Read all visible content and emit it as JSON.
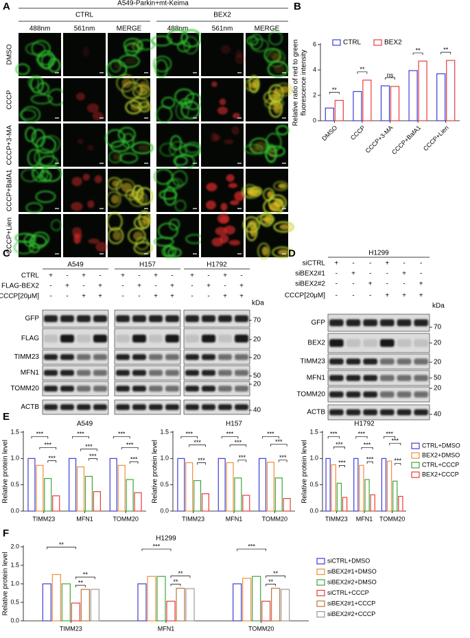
{
  "panel_a": {
    "label": "A",
    "title": "A549-Parkin+mt-Keima",
    "groups": [
      "CTRL",
      "BEX2"
    ],
    "channels": [
      "488nm",
      "561nm",
      "MERGE",
      "488nm",
      "561nm",
      "MERGE"
    ],
    "rows": [
      "DMSO",
      "CCCP",
      "CCCP+3-MA",
      "CCCP+BafA1",
      "CCCP+Lien"
    ]
  },
  "panel_c": {
    "label": "C",
    "cell_lines": [
      "A549",
      "H157",
      "H1792"
    ],
    "unit": "kDa",
    "conditions": [
      {
        "name": "CTRL",
        "signs": [
          "+",
          "-",
          "+",
          "-",
          "+",
          "-",
          "+",
          "-",
          "+",
          "-",
          "+",
          "-"
        ]
      },
      {
        "name": "FLAG-BEX2",
        "signs": [
          "-",
          "+",
          "-",
          "+",
          "-",
          "+",
          "-",
          "+",
          "-",
          "+",
          "-",
          "+"
        ]
      },
      {
        "name": "CCCP[20μM]",
        "signs": [
          "-",
          "-",
          "+",
          "+",
          "-",
          "-",
          "+",
          "+",
          "-",
          "-",
          "+",
          "+"
        ]
      }
    ],
    "blots": [
      {
        "name": "GFP",
        "marker": 70
      },
      {
        "name": "FLAG",
        "marker": 20
      },
      {
        "name": "TIMM23",
        "marker": 20
      },
      {
        "name": "MFN1",
        "marker": 50
      },
      {
        "name": "TOMM20",
        "marker": 20
      },
      {
        "name": "ACTB",
        "marker": 40
      }
    ]
  },
  "panel_d": {
    "label": "D",
    "cell_lines": [
      "H1299"
    ],
    "unit": "kDa",
    "conditions": [
      {
        "name": "siCTRL",
        "signs": [
          "+",
          "-",
          "-",
          "+",
          "-",
          "-"
        ]
      },
      {
        "name": "siBEX2#1",
        "signs": [
          "-",
          "+",
          "-",
          "-",
          "+",
          "-"
        ]
      },
      {
        "name": "siBEX2#2",
        "signs": [
          "-",
          "-",
          "+",
          "-",
          "-",
          "+"
        ]
      },
      {
        "name": "CCCP[20μM]",
        "signs": [
          "-",
          "-",
          "-",
          "+",
          "+",
          "+"
        ]
      }
    ],
    "blots": [
      {
        "name": "GFP",
        "marker": 70
      },
      {
        "name": "BEX2",
        "marker": 20
      },
      {
        "name": "TIMM23",
        "marker": 20
      },
      {
        "name": "MFN1",
        "marker": 50
      },
      {
        "name": "TOMM20",
        "marker": 20
      },
      {
        "name": "ACTB",
        "marker": 40
      }
    ]
  },
  "chart_data": [
    {
      "type": "bar",
      "panel_label": "B",
      "ylabel": [
        "Relative ratio of red to green",
        "fluorescence intensity"
      ],
      "categories": [
        "DMSO",
        "CCCP",
        "CCCP+3-MA",
        "CCCP+BafA1",
        "CCCP+Lien"
      ],
      "series": [
        {
          "name": "CTRL",
          "color": "#3b3bd9",
          "values": [
            1.0,
            2.3,
            2.75,
            3.95,
            3.7
          ]
        },
        {
          "name": "BEX2",
          "color": "#e83b3b",
          "values": [
            1.6,
            3.2,
            2.7,
            4.7,
            4.75
          ]
        }
      ],
      "ylim": [
        0,
        6
      ],
      "yticks": [
        0,
        2,
        4,
        6
      ],
      "significance": [
        "**",
        "**",
        "ns",
        "**",
        "**"
      ]
    },
    {
      "type": "bar",
      "panel_label": "E",
      "title": "A549",
      "ylabel": "Relative protein level",
      "categories": [
        "TIMM23",
        "MFN1",
        "TOMM20"
      ],
      "series": [
        {
          "color": "#3b3bd9",
          "values": [
            1.0,
            1.0,
            1.0
          ]
        },
        {
          "color": "#f08c3a",
          "values": [
            0.87,
            0.84,
            0.87
          ]
        },
        {
          "color": "#3aa63a",
          "values": [
            0.62,
            0.66,
            0.6
          ]
        },
        {
          "color": "#e83b3b",
          "values": [
            0.29,
            0.37,
            0.35
          ]
        }
      ],
      "ylim": [
        0,
        1.5
      ],
      "yticks": [
        {
          "value": 0,
          "label": "0.0"
        },
        0.5,
        {
          "value": 1,
          "label": "1.0"
        },
        1.5
      ],
      "significance": [
        [
          "***",
          "***",
          "***"
        ],
        [
          "***",
          "***",
          "***"
        ],
        [
          "***",
          "***",
          "***"
        ]
      ]
    },
    {
      "type": "bar",
      "title": "H157",
      "ylabel": "Relative protein level",
      "categories": [
        "TIMM23",
        "MFN1",
        "TOMM20"
      ],
      "series": [
        {
          "color": "#3b3bd9",
          "values": [
            1.0,
            1.0,
            1.0
          ]
        },
        {
          "color": "#f08c3a",
          "values": [
            0.92,
            0.92,
            0.93
          ]
        },
        {
          "color": "#3aa63a",
          "values": [
            0.58,
            0.63,
            0.63
          ]
        },
        {
          "color": "#e83b3b",
          "values": [
            0.33,
            0.3,
            0.24
          ]
        }
      ],
      "ylim": [
        0,
        1.5
      ],
      "yticks": [
        {
          "value": 0,
          "label": "0.0"
        },
        0.5,
        {
          "value": 1,
          "label": "1.0"
        },
        1.5
      ],
      "significance": [
        [
          "***",
          "***",
          "***"
        ],
        [
          "***",
          "***",
          "***"
        ],
        [
          "***",
          "***",
          "***"
        ]
      ]
    },
    {
      "type": "bar",
      "title": "H1792",
      "ylabel": "Relative protein level",
      "categories": [
        "TIMM23",
        "MFN1",
        "TOMM20"
      ],
      "series": [
        {
          "name": "CTRL+DMSO",
          "color": "#3b3bd9",
          "values": [
            1.0,
            1.0,
            1.0
          ]
        },
        {
          "name": "BEX2+DMSO",
          "color": "#f08c3a",
          "values": [
            0.88,
            0.87,
            0.95
          ]
        },
        {
          "name": "CTRL+CCCP",
          "color": "#3aa63a",
          "values": [
            0.53,
            0.6,
            0.57
          ]
        },
        {
          "name": "BEX2+CCCP",
          "color": "#e83b3b",
          "values": [
            0.26,
            0.31,
            0.28
          ]
        }
      ],
      "ylim": [
        0,
        1.5
      ],
      "yticks": [
        {
          "value": 0,
          "label": "0.0"
        },
        0.5,
        {
          "value": 1,
          "label": "1.0"
        },
        1.5
      ],
      "significance": [
        [
          "***",
          "***",
          "***"
        ],
        [
          "***",
          "***",
          "***"
        ],
        [
          "***",
          "***",
          "***"
        ]
      ]
    },
    {
      "type": "bar",
      "panel_label": "F",
      "title": "H1299",
      "ylabel": "Relative protein level",
      "categories": [
        "TIMM23",
        "MFN1",
        "TOMM20"
      ],
      "series": [
        {
          "name": "siCTRL+DMSO",
          "color": "#3b3bd9",
          "values": [
            1.0,
            1.0,
            1.0
          ]
        },
        {
          "name": "siBEX2#1+DMSO",
          "color": "#f08c3a",
          "values": [
            1.25,
            1.2,
            1.15
          ]
        },
        {
          "name": "siBEX2#2+DMSO",
          "color": "#3aa63a",
          "values": [
            1.0,
            1.2,
            1.2
          ]
        },
        {
          "name": "siCTRL+CCCP",
          "color": "#e83b3b",
          "values": [
            0.48,
            0.53,
            0.53
          ]
        },
        {
          "name": "siBEX2#1+CCCP",
          "color": "#b8743a",
          "values": [
            0.85,
            0.88,
            0.88
          ]
        },
        {
          "name": "siBEX2#2+CCCP",
          "color": "#9a9a9a",
          "values": [
            0.85,
            0.87,
            0.85
          ]
        }
      ],
      "ylim": [
        0,
        2
      ],
      "yticks": [
        {
          "value": 0,
          "label": "0.0"
        },
        0.5,
        {
          "value": 1,
          "label": "1.0"
        },
        1.5,
        {
          "value": 2,
          "label": "2.0"
        }
      ],
      "significance": [
        [
          "**",
          "**",
          "**"
        ],
        [
          "***",
          "**",
          "**"
        ],
        [
          "***",
          "**",
          "**"
        ]
      ]
    }
  ]
}
